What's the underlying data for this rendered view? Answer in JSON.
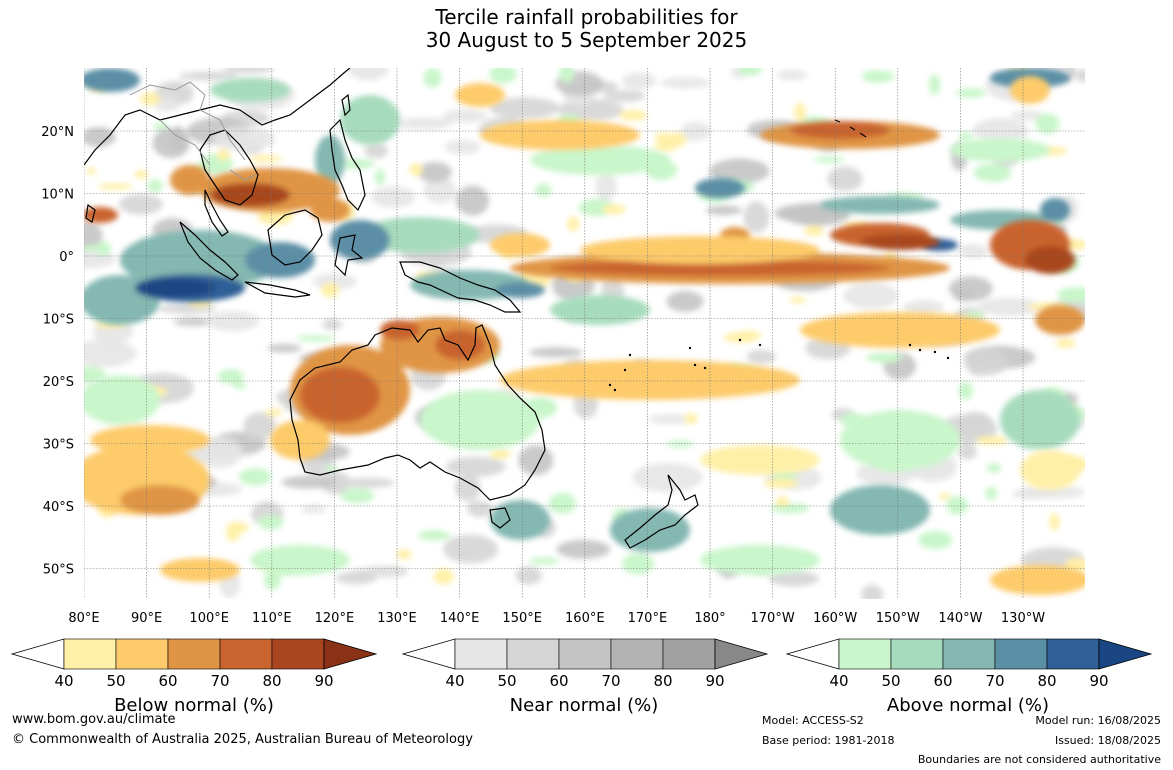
{
  "title": {
    "line1": "Tercile rainfall probabilities for",
    "line2": "30 August to 5 September 2025"
  },
  "map": {
    "region": "Indo-Pacific and Australia",
    "lon_ticks": [
      "80°E",
      "90°E",
      "100°E",
      "110°E",
      "120°E",
      "130°E",
      "140°E",
      "150°E",
      "160°E",
      "170°E",
      "180°",
      "170°W",
      "160°W",
      "150°W",
      "140°W",
      "130°W"
    ],
    "lat_ticks": [
      "20°N",
      "10°N",
      "0°",
      "10°S",
      "20°S",
      "30°S",
      "40°S",
      "50°S"
    ],
    "colors": {
      "below": [
        "#fff0a8",
        "#fdcb6b",
        "#e09545",
        "#c9642e",
        "#a9461f",
        "#8a3216"
      ],
      "near": [
        "#e6e6e6",
        "#d5d5d5",
        "#c4c4c4",
        "#b3b3b3",
        "#a2a2a2",
        "#888888"
      ],
      "above": [
        "#c9f6cb",
        "#a7dbbe",
        "#84b8b1",
        "#5b8fa6",
        "#2f5f96",
        "#1a4683"
      ]
    }
  },
  "colorbars": [
    {
      "label": "Below normal (%)",
      "ticks": [
        "40",
        "50",
        "60",
        "70",
        "80",
        "90"
      ]
    },
    {
      "label": "Near normal (%)",
      "ticks": [
        "40",
        "50",
        "60",
        "70",
        "80",
        "90"
      ]
    },
    {
      "label": "Above normal (%)",
      "ticks": [
        "40",
        "50",
        "60",
        "70",
        "80",
        "90"
      ]
    }
  ],
  "footer": {
    "website": "www.bom.gov.au/climate",
    "copyright": "© Commonwealth of Australia 2025, Australian Bureau of Meteorology",
    "model": "Model: ACCESS-S2",
    "base_period": "Base period: 1981-2018",
    "model_run": "Model run: 16/08/2025",
    "issued": "Issued: 18/08/2025",
    "disclaimer": "Boundaries are not considered authoritative"
  }
}
